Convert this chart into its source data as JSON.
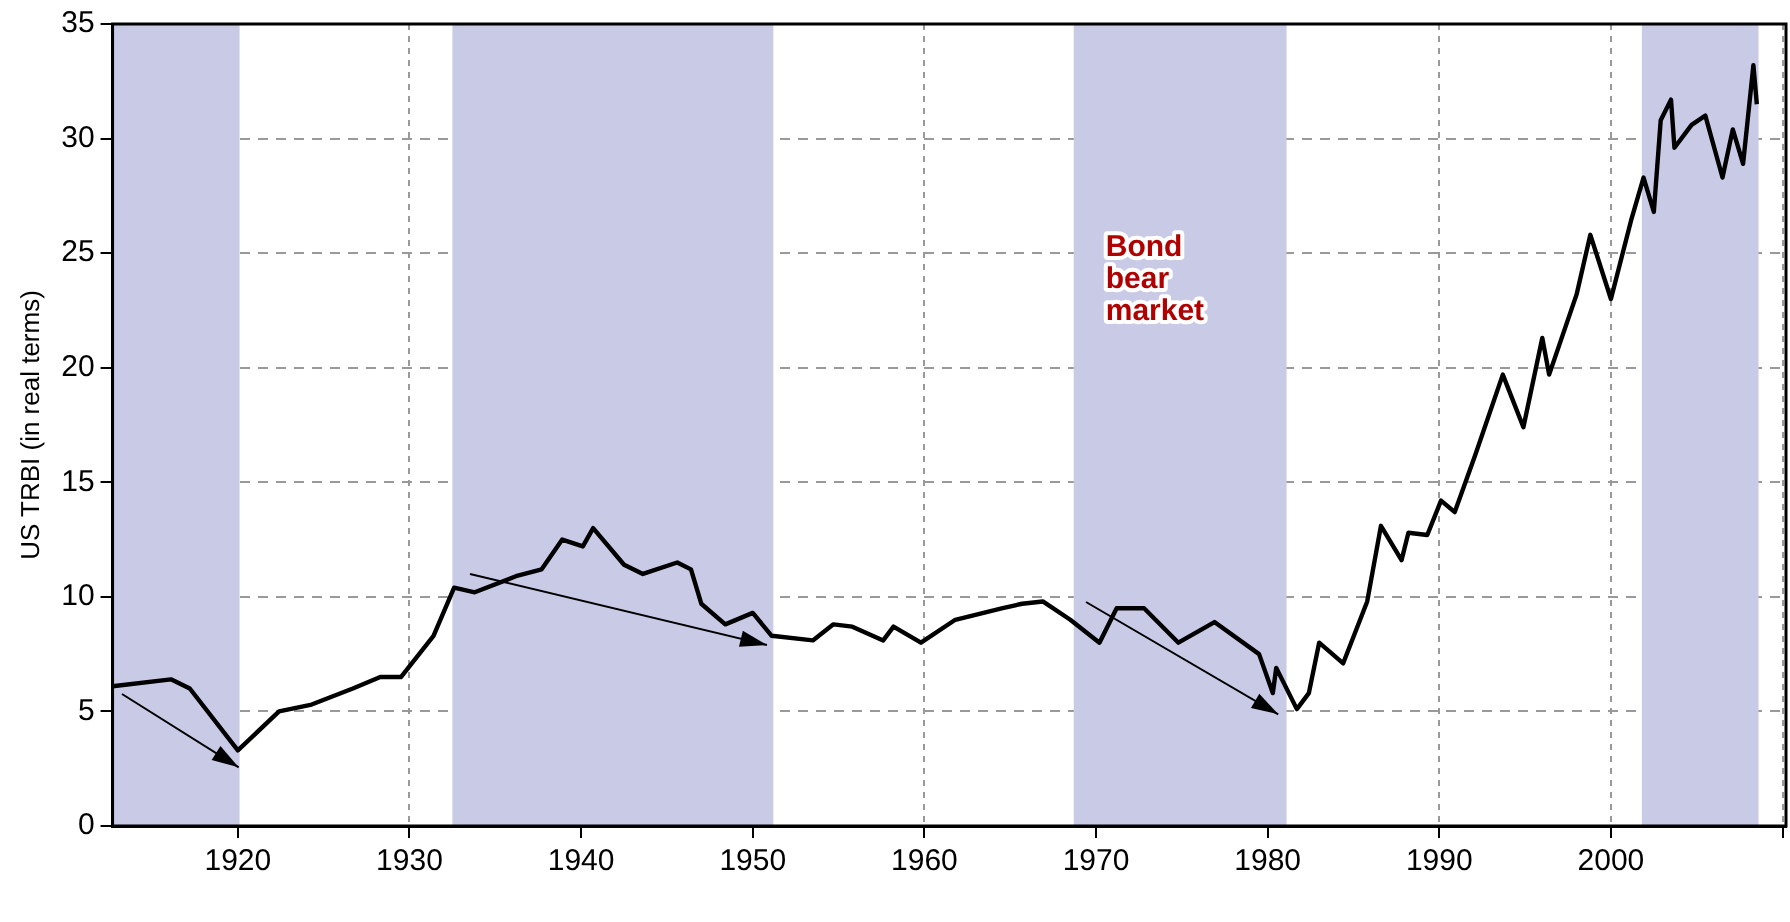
{
  "chart_data": {
    "type": "line",
    "ylabel": "US TRBI (in real terms)",
    "series": [
      {
        "color": "#000000",
        "x": [
          1912.7,
          1916.1,
          1917.2,
          1920.0,
          1922.4,
          1924.3,
          1926.7,
          1928.3,
          1929.5,
          1931.4,
          1932.6,
          1933.8,
          1936.2,
          1937.7,
          1938.9,
          1940.1,
          1940.7,
          1942.5,
          1943.6,
          1945.6,
          1946.4,
          1947.0,
          1948.4,
          1950.0,
          1951.1,
          1953.5,
          1954.7,
          1955.8,
          1957.6,
          1958.2,
          1959.8,
          1961.8,
          1964.5,
          1965.7,
          1966.9,
          1968.5,
          1970.2,
          1971.2,
          1972.8,
          1974.8,
          1976.9,
          1979.5,
          1980.3,
          1980.5,
          1981.7,
          1982.4,
          1983.0,
          1984.4,
          1985.8,
          1986.6,
          1987.8,
          1988.2,
          1989.3,
          1990.1,
          1990.9,
          1992.1,
          1993.7,
          1994.9,
          1996.0,
          1996.4,
          1998.0,
          1998.8,
          2000.0,
          2001.2,
          2001.9,
          2002.5,
          2002.9,
          2003.5,
          2003.7,
          2004.7,
          2005.5,
          2006.5,
          2007.1,
          2007.7,
          2008.3,
          2008.5
        ],
        "values": [
          6.1,
          6.4,
          6.0,
          3.3,
          5.0,
          5.3,
          6.0,
          6.5,
          6.5,
          8.3,
          10.4,
          10.2,
          10.9,
          11.2,
          12.5,
          12.2,
          13.0,
          11.4,
          11.0,
          11.5,
          11.2,
          9.7,
          8.8,
          9.3,
          8.3,
          8.1,
          8.8,
          8.7,
          8.1,
          8.7,
          8.0,
          9.0,
          9.5,
          9.7,
          9.8,
          9.0,
          8.0,
          9.5,
          9.5,
          8.0,
          8.9,
          7.5,
          5.8,
          6.9,
          5.1,
          5.8,
          8.0,
          7.1,
          9.8,
          13.1,
          11.6,
          12.8,
          12.7,
          14.2,
          13.7,
          16.2,
          19.7,
          17.4,
          21.3,
          19.7,
          23.2,
          25.8,
          23.0,
          26.5,
          28.3,
          26.8,
          30.8,
          31.7,
          29.6,
          30.6,
          31.0,
          28.3,
          30.4,
          28.9,
          33.2,
          31.5
        ]
      }
    ],
    "xlim": [
      1912.7,
      2010.2
    ],
    "xticks": [
      1920,
      1930,
      1940,
      1950,
      1960,
      1970,
      1980,
      1990,
      2000,
      {
        "value": 2010,
        "label": null
      }
    ],
    "ylim": [
      0,
      35
    ],
    "yticks": [
      0,
      5,
      10,
      15,
      20,
      25,
      30,
      35
    ],
    "grid": true,
    "line_style": "solid",
    "marker": "none",
    "bands": [
      {
        "axis": "x",
        "from": 1912.7,
        "to": 1920.1,
        "color": "#c8cae6"
      },
      {
        "axis": "x",
        "from": 1932.5,
        "to": 1951.2,
        "color": "#c8cae6"
      },
      {
        "axis": "x",
        "from": 1968.7,
        "to": 1981.1,
        "color": "#c8cae6",
        "label": "Bond bear market"
      },
      {
        "axis": "x",
        "from": 2001.8,
        "to": 2008.6,
        "color": "#c8cae6"
      }
    ]
  }
}
